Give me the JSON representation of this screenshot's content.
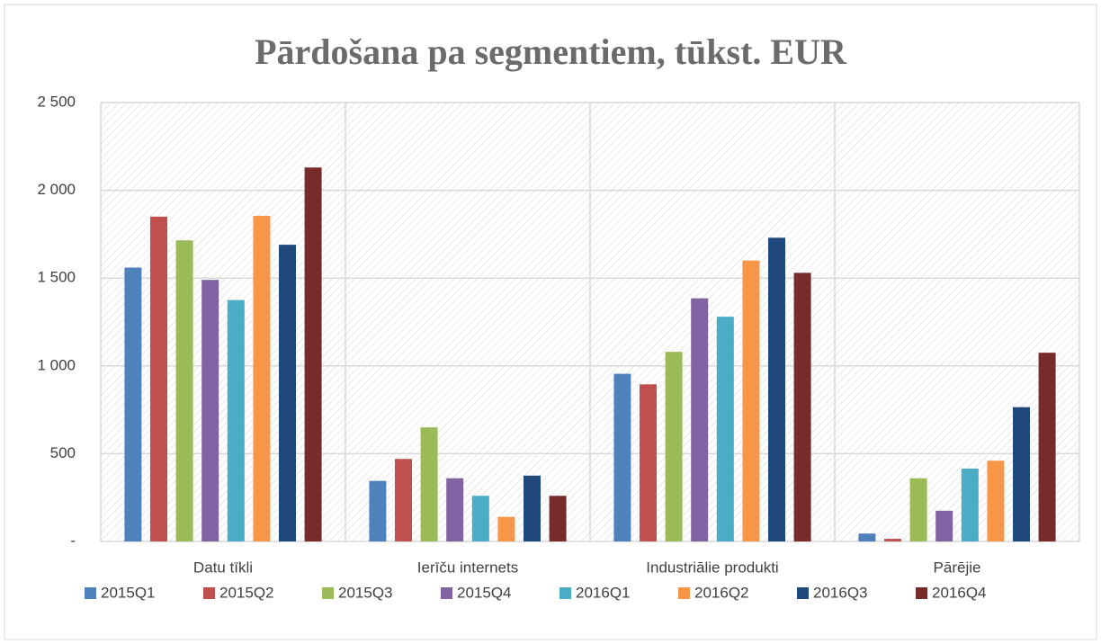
{
  "chart_data": {
    "type": "bar",
    "title": "Pārdošana pa segmentiem, tūkst. EUR",
    "categories": [
      "Datu tīkli",
      "Ierīču internets",
      "Industriālie produkti",
      "Pārējie"
    ],
    "series": [
      {
        "name": "2015Q1",
        "color": "#4f81bd",
        "values": [
          1560,
          345,
          955,
          45
        ]
      },
      {
        "name": "2015Q2",
        "color": "#c0504d",
        "values": [
          1850,
          470,
          895,
          15
        ]
      },
      {
        "name": "2015Q3",
        "color": "#9bbb59",
        "values": [
          1715,
          650,
          1080,
          360
        ]
      },
      {
        "name": "2015Q4",
        "color": "#8064a2",
        "values": [
          1490,
          360,
          1385,
          175
        ]
      },
      {
        "name": "2016Q1",
        "color": "#4bacc6",
        "values": [
          1375,
          260,
          1280,
          415
        ]
      },
      {
        "name": "2016Q2",
        "color": "#f79646",
        "values": [
          1855,
          140,
          1600,
          460
        ]
      },
      {
        "name": "2016Q3",
        "color": "#1f497d",
        "values": [
          1690,
          375,
          1730,
          765
        ]
      },
      {
        "name": "2016Q4",
        "color": "#772c2a",
        "values": [
          2130,
          260,
          1530,
          1075
        ]
      }
    ],
    "ylim": [
      0,
      2500
    ],
    "yticks": [
      {
        "value": 0,
        "label": "-"
      },
      500,
      {
        "value": 1000,
        "label": "1 000"
      },
      {
        "value": 1500,
        "label": "1 500"
      },
      {
        "value": 2000,
        "label": "2 000"
      },
      {
        "value": 2500,
        "label": "2 500"
      }
    ],
    "grid": true,
    "legend": "bottom"
  }
}
